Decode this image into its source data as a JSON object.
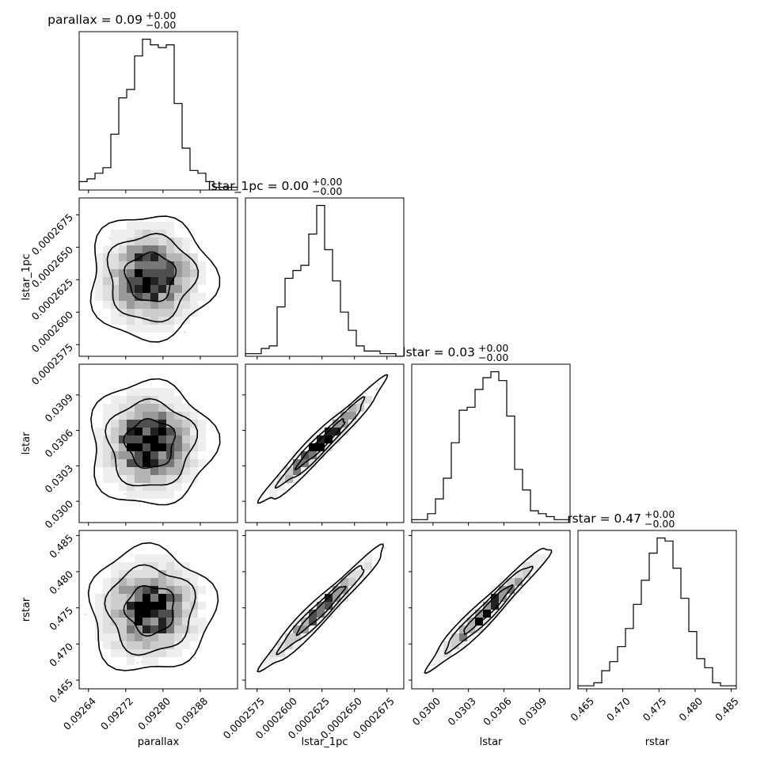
{
  "chart_data": {
    "type": "corner",
    "parameters": [
      "parallax",
      "lstar_1pc",
      "lstar",
      "rstar"
    ],
    "titles": [
      {
        "name": "parallax",
        "value": "0.09",
        "plus": "+0.00",
        "minus": "−0.00"
      },
      {
        "name": "lstar_1pc",
        "value": "0.00",
        "plus": "+0.00",
        "minus": "−0.00"
      },
      {
        "name": "lstar",
        "value": "0.03",
        "plus": "+0.00",
        "minus": "−0.00"
      },
      {
        "name": "rstar",
        "value": "0.47",
        "plus": "+0.00",
        "minus": "−0.00"
      }
    ],
    "axes": [
      {
        "name": "parallax",
        "range": [
          0.09262,
          0.09296
        ],
        "ticks": [
          0.09264,
          0.09272,
          0.0928,
          0.09288
        ],
        "tick_labels": [
          "0.09264",
          "0.09272",
          "0.09280",
          "0.09288"
        ]
      },
      {
        "name": "lstar_1pc",
        "range": [
          0.0002566,
          0.0002688
        ],
        "ticks": [
          0.0002575,
          0.00026,
          0.0002625,
          0.000265,
          0.0002675
        ],
        "tick_labels": [
          "0.0002575",
          "0.0002600",
          "0.0002625",
          "0.0002650",
          "0.0002675"
        ]
      },
      {
        "name": "lstar",
        "range": [
          0.02982,
          0.03116
        ],
        "ticks": [
          0.03,
          0.0303,
          0.0306,
          0.0309
        ],
        "tick_labels": [
          "0.0300",
          "0.0303",
          "0.0306",
          "0.0309"
        ]
      },
      {
        "name": "rstar",
        "range": [
          0.4638,
          0.4857
        ],
        "ticks": [
          0.465,
          0.47,
          0.475,
          0.48,
          0.485
        ],
        "tick_labels": [
          "0.465",
          "0.470",
          "0.475",
          "0.480",
          "0.485"
        ]
      }
    ],
    "histograms": [
      {
        "name": "parallax",
        "counts": [
          3,
          4,
          6,
          8,
          20,
          33,
          36,
          48,
          54,
          52,
          51,
          52,
          31,
          15,
          7,
          6,
          3,
          1,
          1,
          1
        ]
      },
      {
        "name": "lstar_1pc",
        "counts": [
          1,
          1,
          3,
          4,
          19,
          30,
          33,
          35,
          47,
          58,
          41,
          29,
          17,
          10,
          4,
          2,
          2,
          1,
          1,
          0
        ]
      },
      {
        "name": "lstar",
        "counts": [
          1,
          1,
          3,
          8,
          15,
          27,
          38,
          39,
          45,
          49,
          51,
          48,
          36,
          18,
          11,
          4,
          3,
          2,
          1,
          1
        ]
      },
      {
        "name": "rstar",
        "counts": [
          1,
          1,
          2,
          6,
          9,
          14,
          20,
          28,
          36,
          45,
          50,
          49,
          40,
          30,
          19,
          10,
          7,
          2,
          1,
          1
        ]
      }
    ]
  }
}
